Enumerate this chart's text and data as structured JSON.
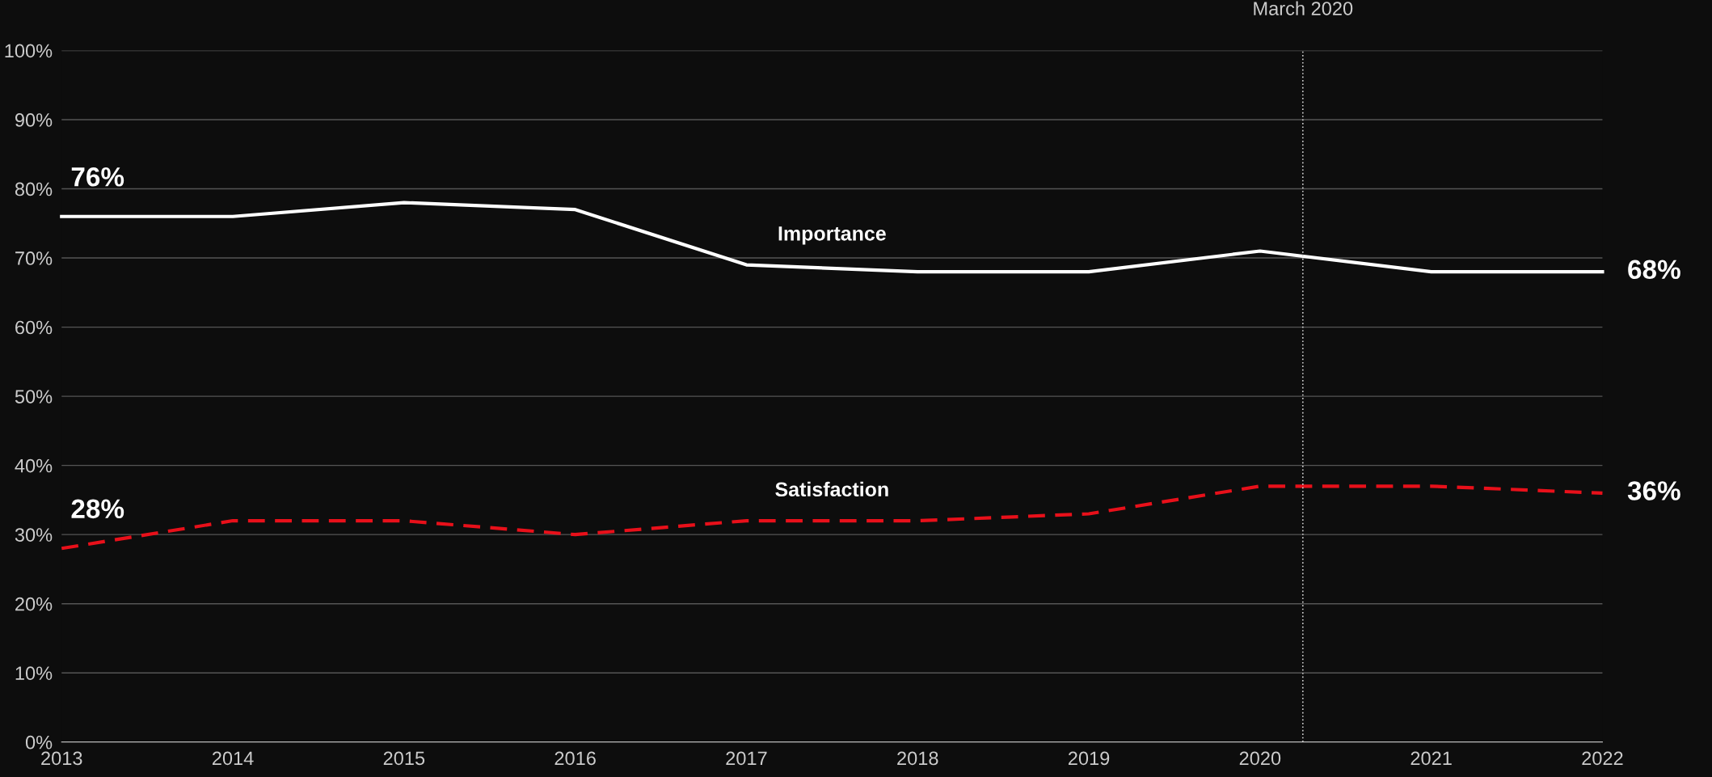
{
  "chart_data": {
    "type": "line",
    "x": [
      2013,
      2014,
      2015,
      2016,
      2017,
      2018,
      2019,
      2020,
      2021,
      2022
    ],
    "xlim": [
      2013,
      2022
    ],
    "xticks": [
      2013,
      2014,
      2015,
      2016,
      2017,
      2018,
      2019,
      2020,
      2021,
      2022
    ],
    "ylim": [
      0,
      100
    ],
    "yticks": [
      {
        "value": 0,
        "label": "0%"
      },
      {
        "value": 10,
        "label": "10%"
      },
      {
        "value": 20,
        "label": "20%"
      },
      {
        "value": 30,
        "label": "30%"
      },
      {
        "value": 40,
        "label": "40%"
      },
      {
        "value": 50,
        "label": "50%"
      },
      {
        "value": 60,
        "label": "60%"
      },
      {
        "value": 70,
        "label": "70%"
      },
      {
        "value": 80,
        "label": "80%"
      },
      {
        "value": 90,
        "label": "90%"
      },
      {
        "value": 100,
        "label": "100%"
      }
    ],
    "grid": "y",
    "legend": false,
    "marker": "none",
    "series": [
      {
        "name": "Importance",
        "color": "#ffffff",
        "line_style": "solid",
        "values": [
          76,
          76,
          78,
          77,
          69,
          68,
          68,
          71,
          68,
          68
        ],
        "value_labels": [
          "76%",
          null,
          null,
          null,
          null,
          null,
          null,
          null,
          null,
          "68%"
        ]
      },
      {
        "name": "Satisfaction",
        "color": "#e8101a",
        "line_style": "dashed",
        "values": [
          28,
          32,
          32,
          30,
          32,
          32,
          33,
          37,
          37,
          36
        ],
        "value_labels": [
          "28%",
          null,
          null,
          null,
          null,
          null,
          null,
          null,
          null,
          "36%"
        ]
      }
    ],
    "ref_lines": [
      {
        "axis": "x",
        "value": 2020.25,
        "label": "March 2020",
        "color": "#cccccc",
        "line_style": "dotted"
      }
    ]
  }
}
